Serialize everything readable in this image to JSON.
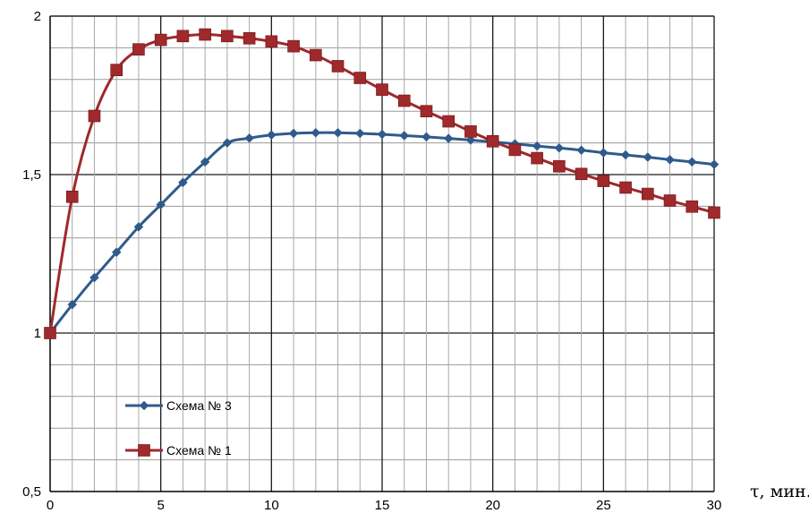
{
  "chart_data": {
    "type": "line",
    "title": "",
    "xlabel": "τ, мин.",
    "ylabel": "",
    "xlim": [
      0,
      30
    ],
    "ylim": [
      0.5,
      2
    ],
    "x_ticks": [
      "0",
      "5",
      "10",
      "15",
      "20",
      "25",
      "30"
    ],
    "y_ticks": [
      "0,5",
      "1",
      "1,5",
      "2"
    ],
    "grid": true,
    "legend_position": "bottom-left",
    "x": [
      0,
      1,
      2,
      3,
      4,
      5,
      6,
      7,
      8,
      9,
      10,
      11,
      12,
      13,
      14,
      15,
      16,
      17,
      18,
      19,
      20,
      21,
      22,
      23,
      24,
      25,
      26,
      27,
      28,
      29,
      30
    ],
    "series": [
      {
        "name": "Схема № 3",
        "color": "#2f5b8c",
        "marker": "diamond",
        "values": [
          1.0,
          1.09,
          1.175,
          1.255,
          1.335,
          1.405,
          1.475,
          1.54,
          1.6,
          1.615,
          1.625,
          1.63,
          1.632,
          1.632,
          1.63,
          1.627,
          1.623,
          1.619,
          1.614,
          1.609,
          1.603,
          1.597,
          1.59,
          1.584,
          1.577,
          1.569,
          1.562,
          1.555,
          1.547,
          1.54,
          1.532
        ]
      },
      {
        "name": "Схема № 1",
        "color": "#a0292c",
        "marker": "square",
        "values": [
          1.0,
          1.43,
          1.685,
          1.83,
          1.895,
          1.925,
          1.937,
          1.942,
          1.937,
          1.93,
          1.92,
          1.905,
          1.877,
          1.842,
          1.805,
          1.768,
          1.733,
          1.7,
          1.668,
          1.636,
          1.605,
          1.578,
          1.552,
          1.526,
          1.502,
          1.48,
          1.459,
          1.439,
          1.418,
          1.399,
          1.38
        ]
      }
    ]
  }
}
